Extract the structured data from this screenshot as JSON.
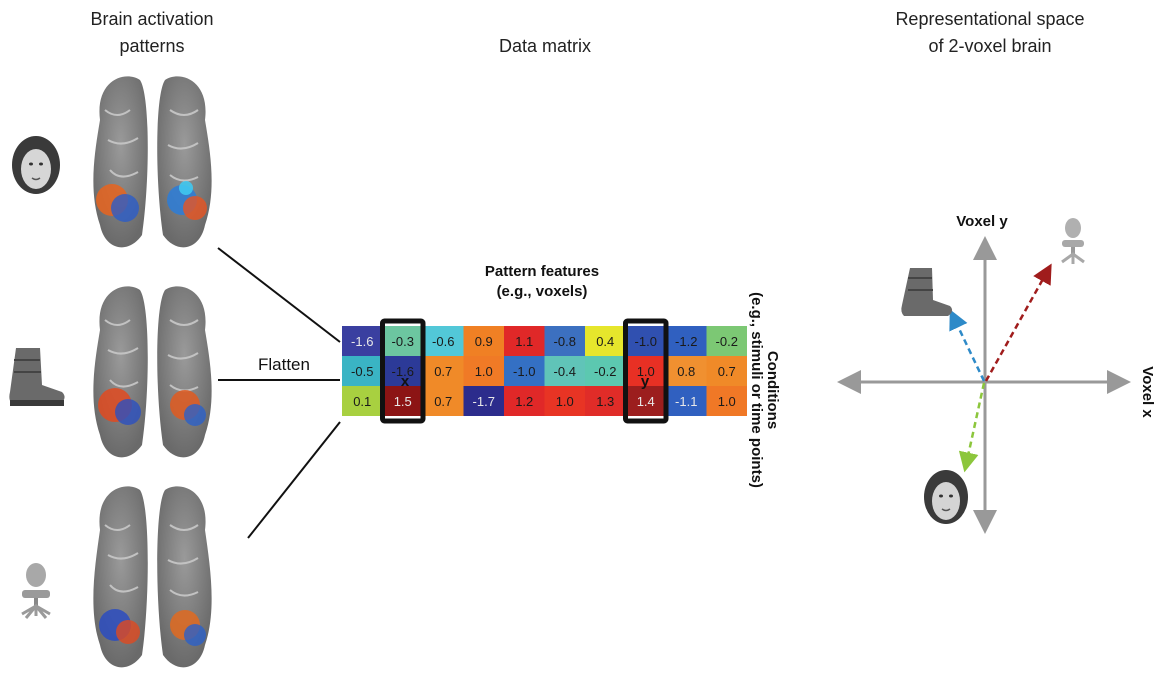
{
  "titles": {
    "left_line1": "Brain activation",
    "left_line2": "patterns",
    "middle": "Data matrix",
    "right_line1": "Representational space",
    "right_line2": "of 2-voxel brain"
  },
  "flatten_label": "Flatten",
  "matrix": {
    "features_line1": "Pattern features",
    "features_line2": "(e.g., voxels)",
    "conditions_line1": "Conditions",
    "conditions_line2": "(e.g., stimuli or time points)",
    "x_label": "x",
    "y_label": "y",
    "rows": [
      [
        "-1.6",
        "-0.3",
        "-0.6",
        "0.9",
        "1.1",
        "-0.8",
        "0.4",
        "-1.0",
        "-1.2",
        "-0.2"
      ],
      [
        "-0.5",
        "-1.6",
        "0.7",
        "1.0",
        "-1.0",
        "-0.4",
        "-0.2",
        "1.0",
        "0.8",
        "0.7"
      ],
      [
        "0.1",
        "1.5",
        "0.7",
        "-1.7",
        "1.2",
        "1.0",
        "1.3",
        "1.4",
        "-1.1",
        "1.0"
      ]
    ],
    "colors": [
      [
        "#3a3fa0",
        "#6cc6a0",
        "#52c8d8",
        "#f08024",
        "#e02828",
        "#3c70c0",
        "#e6e62c",
        "#3050b0",
        "#3060c0",
        "#7cc874"
      ],
      [
        "#3ab4c4",
        "#2c3a98",
        "#f08a28",
        "#f07a26",
        "#3470c4",
        "#60c4b8",
        "#5cc8b0",
        "#e83024",
        "#f09030",
        "#f08a28"
      ],
      [
        "#a8d040",
        "#8c1414",
        "#f08a28",
        "#2c2c8c",
        "#e02828",
        "#e83424",
        "#e02c28",
        "#9c1e1e",
        "#3060c0",
        "#f07826"
      ]
    ],
    "light_text_cells": [
      [
        0,
        0
      ],
      [
        2,
        1
      ],
      [
        2,
        3
      ],
      [
        2,
        7
      ],
      [
        2,
        8
      ]
    ],
    "highlight_columns": [
      1,
      7
    ]
  },
  "space": {
    "voxel_y": "Voxel y",
    "voxel_x": "Voxel x",
    "vectors": [
      {
        "name": "boot",
        "color": "#2e8ac8"
      },
      {
        "name": "chair",
        "color": "#a01c1c"
      },
      {
        "name": "face",
        "color": "#8cc63c"
      }
    ]
  }
}
